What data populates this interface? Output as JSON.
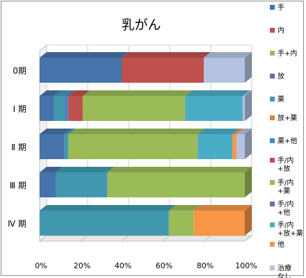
{
  "chart_data": {
    "type": "bar",
    "orientation": "horizontal",
    "stacked": "percent",
    "style": "3d",
    "title": "乳がん",
    "categories": [
      "0期",
      "Ⅰ 期",
      "Ⅱ 期",
      "Ⅲ 期",
      "Ⅳ 期"
    ],
    "xlim": [
      0,
      100
    ],
    "x_ticks": [
      "0%",
      "20%",
      "40%",
      "60%",
      "80%",
      "100%"
    ],
    "gridlines": true,
    "legend_position": "right",
    "series": [
      {
        "name": "手",
        "color": "#4573aa",
        "values": [
          40,
          7,
          12,
          8,
          0
        ]
      },
      {
        "name": "内",
        "color": "#c0504d",
        "values": [
          40,
          0,
          0,
          0,
          0
        ]
      },
      {
        "name": "手+内",
        "color": "#9bbb59",
        "values": [
          0,
          0,
          0,
          0,
          0
        ]
      },
      {
        "name": "放",
        "color": "#7d60a0",
        "values": [
          0,
          0,
          0,
          0,
          0
        ]
      },
      {
        "name": "薬",
        "color": "#4198af",
        "values": [
          0,
          5,
          2,
          25,
          63
        ]
      },
      {
        "name": "放+薬",
        "color": "#d9843b",
        "values": [
          0,
          0,
          0,
          0,
          0
        ]
      },
      {
        "name": "薬+他",
        "color": "#4f81bd",
        "values": [
          0,
          2,
          0,
          0,
          0
        ]
      },
      {
        "name": "手/内+放",
        "color": "#c0504d",
        "values": [
          0,
          7,
          0,
          0,
          0
        ]
      },
      {
        "name": "手/内+薬",
        "color": "#9bbb59",
        "values": [
          0,
          50,
          63,
          67,
          12
        ]
      },
      {
        "name": "手/内+他",
        "color": "#8064a2",
        "values": [
          0,
          0,
          0,
          0,
          0
        ]
      },
      {
        "name": "手/内+放+薬",
        "color": "#4bacc6",
        "values": [
          0,
          28,
          17,
          0,
          0
        ]
      },
      {
        "name": "他",
        "color": "#f79646",
        "values": [
          0,
          0,
          2,
          0,
          25
        ]
      },
      {
        "name": "治療なし",
        "color": "#b3c3e0",
        "values": [
          20,
          1,
          4,
          0,
          0
        ]
      }
    ]
  }
}
